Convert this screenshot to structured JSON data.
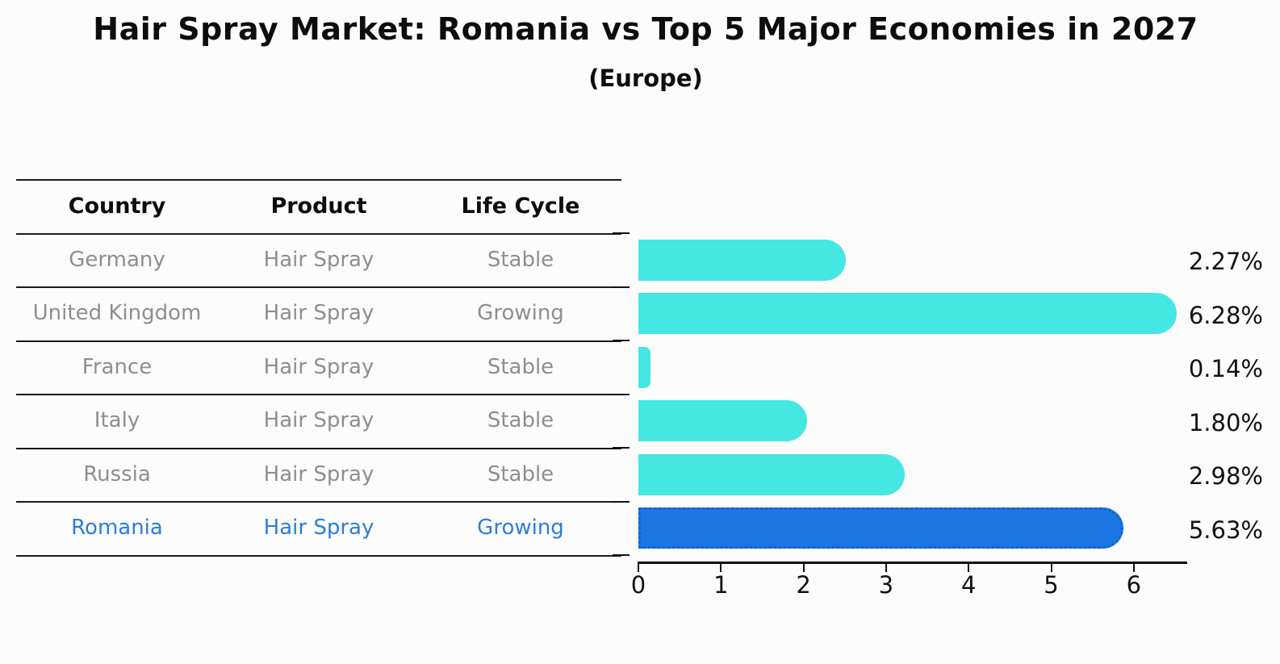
{
  "title": "Hair Spray Market: Romania vs Top 5 Major Economies in 2027",
  "subtitle": "(Europe)",
  "table": {
    "headers": [
      "Country",
      "Product",
      "Life Cycle"
    ],
    "rows": [
      {
        "country": "Germany",
        "product": "Hair Spray",
        "life_cycle": "Stable"
      },
      {
        "country": "United Kingdom",
        "product": "Hair Spray",
        "life_cycle": "Growing"
      },
      {
        "country": "France",
        "product": "Hair Spray",
        "life_cycle": "Stable"
      },
      {
        "country": "Italy",
        "product": "Hair Spray",
        "life_cycle": "Stable"
      },
      {
        "country": "Russia",
        "product": "Hair Spray",
        "life_cycle": "Stable"
      },
      {
        "country": "Romania",
        "product": "Hair Spray",
        "life_cycle": "Growing"
      }
    ]
  },
  "chart_data": {
    "type": "bar",
    "orientation": "horizontal",
    "title": "Hair Spray Market: Romania vs Top 5 Major Economies in 2027",
    "subtitle": "(Europe)",
    "categories": [
      "Germany",
      "United Kingdom",
      "France",
      "Italy",
      "Russia",
      "Romania"
    ],
    "values": [
      2.27,
      6.28,
      0.14,
      1.8,
      2.98,
      5.63
    ],
    "value_labels": [
      "2.27%",
      "6.28%",
      "0.14%",
      "1.80%",
      "2.98%",
      "5.63%"
    ],
    "x_ticks": [
      "0",
      "1",
      "2",
      "3",
      "4",
      "5",
      "6"
    ],
    "xlim": [
      0,
      6.6
    ],
    "xlabel": "",
    "ylabel": "",
    "grid": false,
    "legend_position": "none",
    "highlight_index": 5
  },
  "colors": {
    "bar_default": "#44e7e2",
    "bar_highlight": "#1b76e1",
    "highlight_text": "#2c7fd2",
    "row_text": "#8e8e8e",
    "header_text": "#0d0d0d",
    "axis": "#111111",
    "background": "#fcfcfd"
  }
}
